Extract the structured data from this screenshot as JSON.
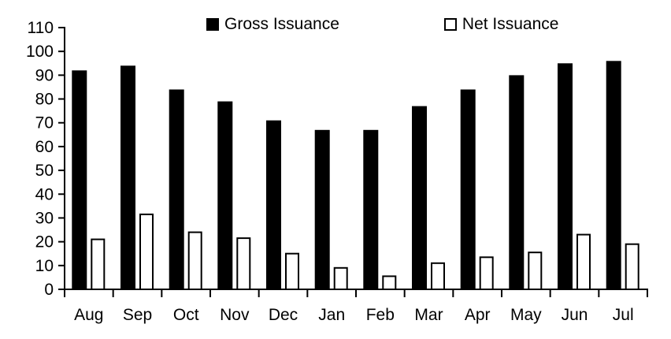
{
  "chart_data": {
    "type": "bar",
    "title": "",
    "xlabel": "",
    "ylabel": "",
    "categories": [
      "Aug",
      "Sep",
      "Oct",
      "Nov",
      "Dec",
      "Jan",
      "Feb",
      "Mar",
      "Apr",
      "May",
      "Jun",
      "Jul"
    ],
    "series": [
      {
        "name": "Gross Issuance",
        "style": "solid",
        "fill_color": "#000000",
        "border_color": "#000000",
        "values": [
          92,
          94,
          84,
          79,
          71,
          67,
          67,
          77,
          84,
          90,
          95,
          96
        ]
      },
      {
        "name": "Net Issuance",
        "style": "outline",
        "fill_color": "#ffffff",
        "border_color": "#000000",
        "values": [
          21,
          31.5,
          24,
          21.5,
          15,
          9,
          5.5,
          11,
          13.5,
          15.5,
          23,
          19
        ]
      }
    ],
    "ylim": [
      0,
      110
    ],
    "y_ticks": [
      0,
      10,
      20,
      30,
      40,
      50,
      60,
      70,
      80,
      90,
      100,
      110
    ],
    "grid": false,
    "legend_position": "top-center",
    "axis_color": "#000000",
    "background_color": "#ffffff"
  }
}
